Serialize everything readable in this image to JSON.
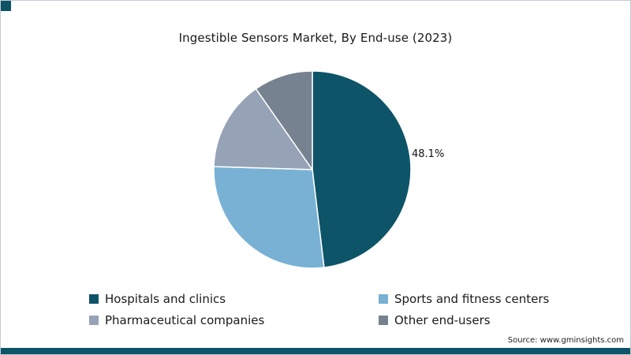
{
  "accent_color": "#0d5468",
  "chart_data": {
    "type": "pie",
    "title": "Ingestible Sensors Market, By End-use (2023)",
    "start_angle_deg": 0,
    "direction": "clockwise",
    "legend_position": "bottom",
    "slices": [
      {
        "label": "Hospitals and clinics",
        "value": 48.1,
        "color": "#0d5468",
        "data_label": "48.1%"
      },
      {
        "label": "Sports and fitness centers",
        "value": 27.4,
        "color": "#78b1d4",
        "data_label": ""
      },
      {
        "label": "Pharmaceutical companies",
        "value": 14.8,
        "color": "#96a3b6",
        "data_label": ""
      },
      {
        "label": "Other end-users",
        "value": 9.7,
        "color": "#76828f",
        "data_label": ""
      }
    ]
  },
  "source": {
    "text": "Source: www.gminsights.com"
  }
}
